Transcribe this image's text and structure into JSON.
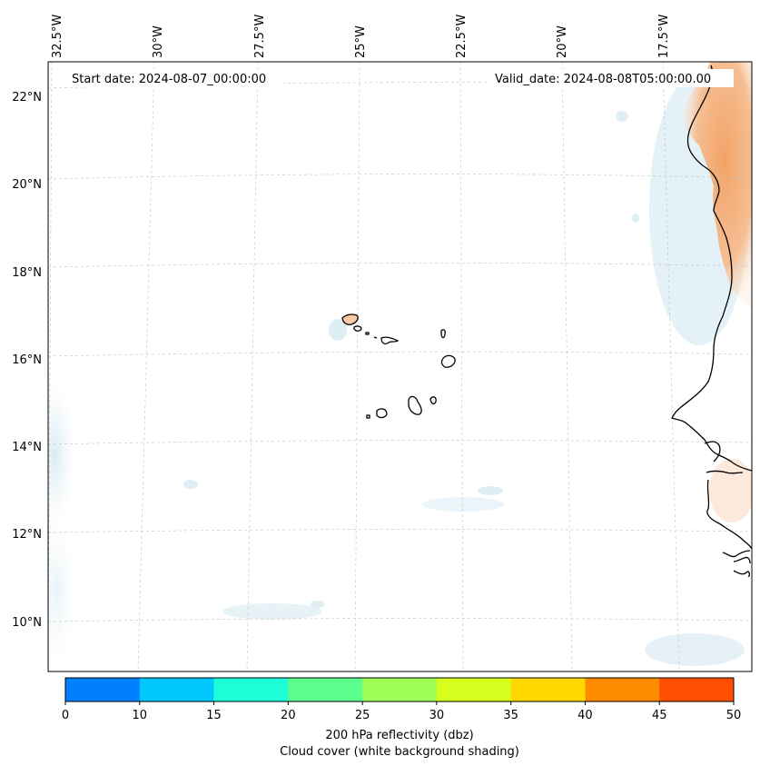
{
  "header": {
    "start_date": "Start date: 2024-08-07_00:00:00",
    "valid_date": "Valid_date: 2024-08-08T05:00:00.00"
  },
  "axes": {
    "lon_labels": [
      "32.5°W",
      "30°W",
      "27.5°W",
      "25°W",
      "22.5°W",
      "20°W",
      "17.5°W"
    ],
    "lat_labels": [
      "22°N",
      "20°N",
      "18°N",
      "16°N",
      "14°N",
      "12°N",
      "10°N"
    ]
  },
  "colorbar": {
    "ticks": [
      "0",
      "10",
      "15",
      "20",
      "25",
      "30",
      "35",
      "40",
      "45",
      "50"
    ],
    "colors": [
      "#0080ff",
      "#00c8ff",
      "#1effd8",
      "#5cff8e",
      "#9dff55",
      "#d7ff1d",
      "#ffd800",
      "#ff8c00",
      "#ff4e00"
    ],
    "label_line1": "200 hPa reflectivity (dbz)",
    "label_line2": "Cloud cover (white background shading)"
  },
  "chart_data": {
    "type": "map",
    "region": "Cape Verde / West African coast",
    "lon_range": [
      -33,
      -15.5
    ],
    "lat_range": [
      9,
      22.8
    ],
    "fields": [
      "200 hPa reflectivity (dbz)",
      "Cloud cover"
    ],
    "colorbar_range": [
      0,
      50
    ]
  }
}
